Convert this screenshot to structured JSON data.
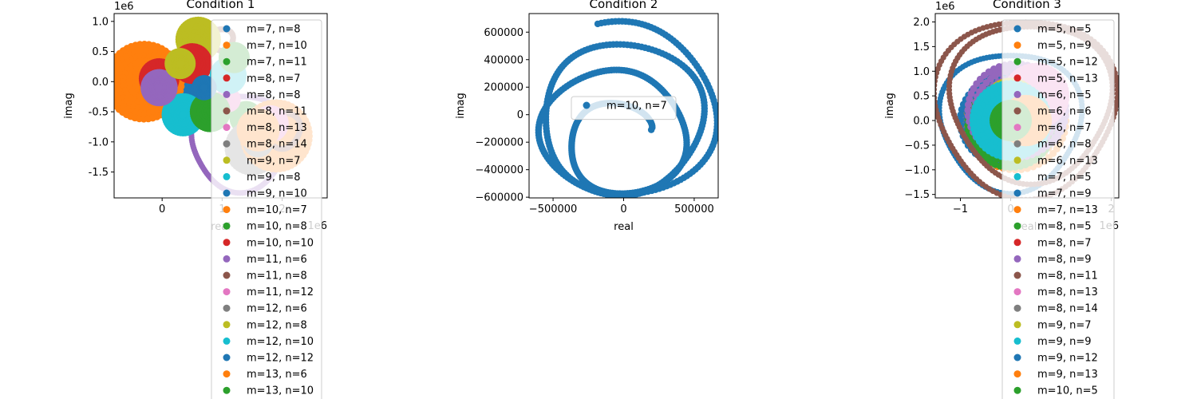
{
  "palette": [
    "#1f77b4",
    "#ff7f0e",
    "#2ca02c",
    "#d62728",
    "#9467bd",
    "#8c564b",
    "#e377c2",
    "#7f7f7f",
    "#bcbd22",
    "#17becf"
  ],
  "chart_data": [
    {
      "type": "scatter",
      "title": "Condition 1",
      "xlabel": "real",
      "ylabel": "imag",
      "x_offset_text": "1e6",
      "y_offset_text": "1e6",
      "xlim": [
        -0.8,
        2.75
      ],
      "ylim": [
        -1.93,
        1.13
      ],
      "xticks": [
        0,
        1,
        2
      ],
      "xtick_labels": [
        "0",
        "1",
        "2"
      ],
      "yticks": [
        1.0,
        0.5,
        0.0,
        -0.5,
        -1.0,
        -1.5
      ],
      "ytick_labels": [
        "1.0",
        "0.5",
        "0.0",
        "-0.5",
        "-1.0",
        "-1.5"
      ],
      "legend_loc": "upper right (extends below axes)",
      "series": [
        {
          "name": "m=7, n=8",
          "cx": 0.4,
          "cy": -0.3,
          "r": 0.35
        },
        {
          "name": "m=7, n=10",
          "cx": -0.3,
          "cy": 0.0,
          "r": 0.62
        },
        {
          "name": "m=7, n=11",
          "cx": 1.4,
          "cy": -0.6,
          "r": 0.22
        },
        {
          "name": "m=8, n=7",
          "cx": -0.05,
          "cy": 0.05,
          "r": 0.28
        },
        {
          "name": "m=8, n=8",
          "cx": 1.3,
          "cy": -1.0,
          "r": 0.8,
          "ring": true
        },
        {
          "name": "m=8, n=11",
          "cx": 1.0,
          "cy": 0.7,
          "r": 0.18,
          "ring": true
        },
        {
          "name": "m=8, n=13",
          "cx": 1.1,
          "cy": -0.3,
          "r": 0.15
        },
        {
          "name": "m=8, n=14",
          "cx": 1.5,
          "cy": -1.1,
          "r": 0.4
        },
        {
          "name": "m=9, n=7",
          "cx": 0.6,
          "cy": 0.7,
          "r": 0.32
        },
        {
          "name": "m=9, n=8",
          "cx": 0.35,
          "cy": -0.55,
          "r": 0.3
        },
        {
          "name": "m=9, n=10",
          "cx": 0.5,
          "cy": 0.25,
          "r": 0.2
        },
        {
          "name": "m=10, n=7",
          "cx": 1.9,
          "cy": -0.9,
          "r": 0.55
        },
        {
          "name": "m=10, n=8",
          "cx": 0.8,
          "cy": -0.5,
          "r": 0.28
        },
        {
          "name": "m=10, n=10",
          "cx": 0.5,
          "cy": 0.3,
          "r": 0.28
        },
        {
          "name": "m=11, n=6",
          "cx": -0.05,
          "cy": -0.1,
          "r": 0.25
        },
        {
          "name": "m=11, n=8",
          "cx": 2.0,
          "cy": -0.8,
          "r": 0.3,
          "ring": true
        },
        {
          "name": "m=11, n=12",
          "cx": 1.8,
          "cy": -0.7,
          "r": 0.25
        },
        {
          "name": "m=12, n=6",
          "cx": 1.6,
          "cy": -1.0,
          "r": 0.2
        },
        {
          "name": "m=12, n=8",
          "cx": 0.3,
          "cy": 0.3,
          "r": 0.2
        },
        {
          "name": "m=12, n=10",
          "cx": 1.1,
          "cy": 0.1,
          "r": 0.25
        },
        {
          "name": "m=12, n=12",
          "cx": 0.7,
          "cy": -0.1,
          "r": 0.15
        },
        {
          "name": "m=13, n=6",
          "cx": 1.6,
          "cy": -0.8,
          "r": 0.3
        },
        {
          "name": "m=13, n=10",
          "cx": 1.2,
          "cy": 0.4,
          "r": 0.2
        }
      ]
    },
    {
      "type": "scatter",
      "title": "Condition 2",
      "xlabel": "real",
      "ylabel": "imag",
      "xlim": [
        -670000,
        670000
      ],
      "ylim": [
        -605000,
        735000
      ],
      "xticks": [
        -500000,
        0,
        500000
      ],
      "xtick_labels": [
        "−500000",
        "0",
        "500000"
      ],
      "yticks": [
        600000,
        400000,
        200000,
        0,
        -200000,
        -400000,
        -600000
      ],
      "ytick_labels": [
        "600000",
        "400000",
        "200000",
        "0",
        "−200000",
        "−400000",
        "−600000"
      ],
      "legend_loc": "center left",
      "series": [
        {
          "name": "m=10, n=7",
          "spiral": {
            "start": [
              -30000,
              -240000
            ],
            "r0": 250000,
            "r1": 680000,
            "turns": 3.2
          }
        }
      ]
    },
    {
      "type": "scatter",
      "title": "Condition 3",
      "xlabel": "real",
      "ylabel": "imag",
      "x_offset_text": "1e6",
      "y_offset_text": "1e6",
      "xlim": [
        -1.5,
        2.15
      ],
      "ylim": [
        -1.57,
        2.17
      ],
      "xticks": [
        -1,
        0,
        2
      ],
      "xtick_labels": [
        "−1",
        "0",
        "2"
      ],
      "yticks": [
        2.0,
        1.5,
        1.0,
        0.5,
        0.0,
        -0.5,
        -1.0,
        -1.5
      ],
      "ytick_labels": [
        "2.0",
        "1.5",
        "1.0",
        "0.5",
        "0.0",
        "−0.5",
        "−1.0",
        "−1.5"
      ],
      "legend_loc": "upper right (extends below axes)",
      "series": [
        {
          "name": "m=5, n=5",
          "cx": 0.0,
          "cy": 0.0,
          "r": 1.4,
          "ring": true
        },
        {
          "name": "m=5, n=9",
          "cx": 0.1,
          "cy": 0.0,
          "r": 1.0
        },
        {
          "name": "m=5, n=12",
          "cx": 0.05,
          "cy": -0.1,
          "r": 0.8
        },
        {
          "name": "m=5, n=13",
          "cx": 0.0,
          "cy": 0.0,
          "r": 0.5
        },
        {
          "name": "m=6, n=5",
          "cx": 0.2,
          "cy": 0.2,
          "r": 0.9
        },
        {
          "name": "m=6, n=6",
          "cx": 0.3,
          "cy": 0.3,
          "r": 1.8,
          "ring": true
        },
        {
          "name": "m=6, n=7",
          "cx": 0.1,
          "cy": 0.1,
          "r": 0.4
        },
        {
          "name": "m=6, n=8",
          "cx": 0.0,
          "cy": 0.0,
          "r": 0.2
        },
        {
          "name": "m=6, n=13",
          "cx": 0.15,
          "cy": 0.0,
          "r": 0.6
        },
        {
          "name": "m=7, n=5",
          "cx": 0.0,
          "cy": 0.1,
          "r": 0.7
        },
        {
          "name": "m=7, n=9",
          "cx": -0.1,
          "cy": 0.0,
          "r": 0.9
        },
        {
          "name": "m=7, n=13",
          "cx": 0.2,
          "cy": 0.0,
          "r": 0.3
        },
        {
          "name": "m=8, n=5",
          "cx": 0.0,
          "cy": -0.1,
          "r": 0.85
        },
        {
          "name": "m=8, n=7",
          "cx": 0.0,
          "cy": 0.0,
          "r": 0.55
        },
        {
          "name": "m=8, n=9",
          "cx": 0.1,
          "cy": 0.2,
          "r": 0.95
        },
        {
          "name": "m=8, n=11",
          "cx": 0.4,
          "cy": 0.4,
          "r": 1.6,
          "ring": true
        },
        {
          "name": "m=8, n=13",
          "cx": 0.5,
          "cy": 0.5,
          "r": 0.6
        },
        {
          "name": "m=8, n=14",
          "cx": 0.2,
          "cy": -0.2,
          "r": 0.3
        },
        {
          "name": "m=9, n=7",
          "cx": 0.0,
          "cy": 0.3,
          "r": 0.5
        },
        {
          "name": "m=9, n=9",
          "cx": 0.0,
          "cy": 0.0,
          "r": 0.75
        },
        {
          "name": "m=9, n=12",
          "cx": 0.1,
          "cy": 0.1,
          "r": 0.25
        },
        {
          "name": "m=9, n=13",
          "cx": 0.3,
          "cy": 0.0,
          "r": 0.45
        },
        {
          "name": "m=10, n=5",
          "cx": 0.0,
          "cy": 0.0,
          "r": 0.35
        }
      ]
    }
  ]
}
